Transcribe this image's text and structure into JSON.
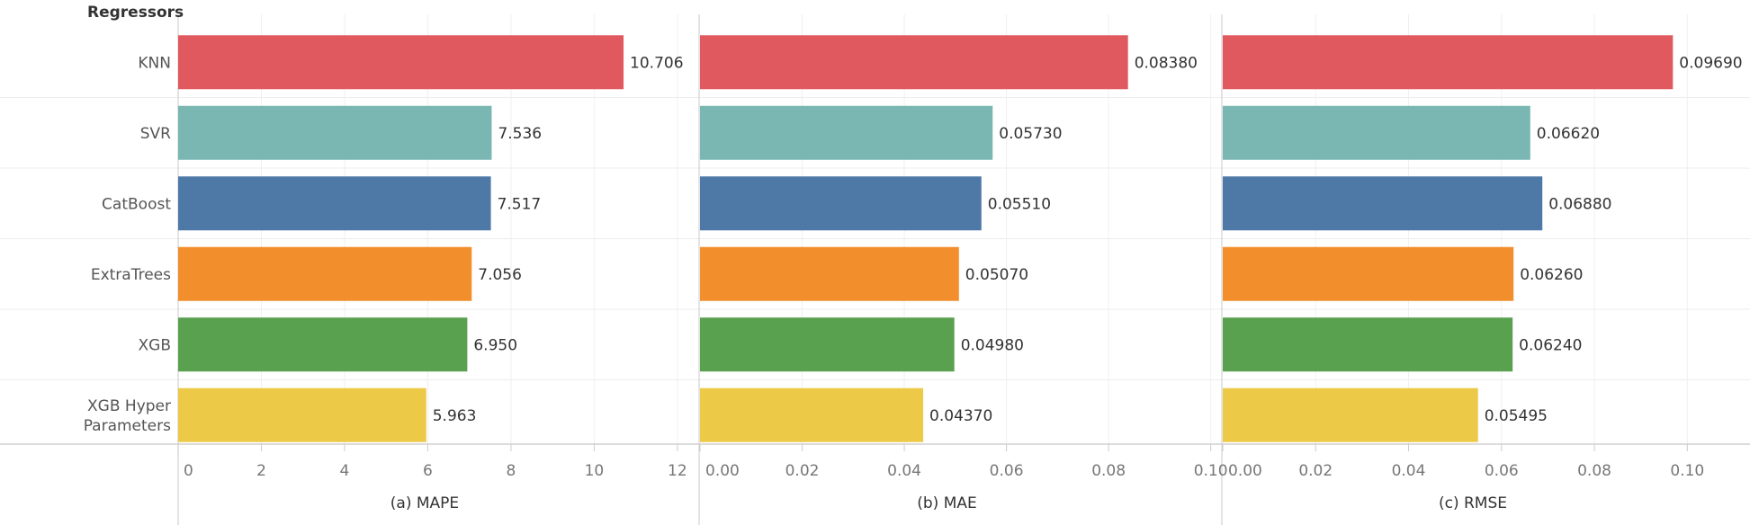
{
  "header_label": "Regressors",
  "colors": {
    "KNN": "#e0595e",
    "SVR": "#7ab7b2",
    "CatBoost": "#4e79a7",
    "ExtraTrees": "#f28e2b",
    "XGB": "#59a14f",
    "XGB Hyper Parameters": "#edc948"
  },
  "chart_data": {
    "type": "bar",
    "orientation": "horizontal",
    "categories": [
      "KNN",
      "SVR",
      "CatBoost",
      "ExtraTrees",
      "XGB",
      "XGB Hyper Parameters"
    ],
    "category_lines": [
      [
        "KNN"
      ],
      [
        "SVR"
      ],
      [
        "CatBoost"
      ],
      [
        "ExtraTrees"
      ],
      [
        "XGB"
      ],
      [
        "XGB Hyper",
        "Parameters"
      ]
    ],
    "panels": [
      {
        "title": "(a) MAPE",
        "values": [
          10.706,
          7.536,
          7.517,
          7.056,
          6.95,
          5.963
        ],
        "value_labels": [
          "10.706",
          "7.536",
          "7.517",
          "7.056",
          "6.950",
          "5.963"
        ],
        "xlim": [
          0,
          12.5
        ],
        "ticks": [
          0,
          2,
          4,
          6,
          8,
          10,
          12
        ],
        "tick_labels": [
          "0",
          "2",
          "4",
          "6",
          "8",
          "10",
          "12"
        ]
      },
      {
        "title": "(b) MAE",
        "values": [
          0.0838,
          0.0573,
          0.0551,
          0.0507,
          0.0498,
          0.0437
        ],
        "value_labels": [
          "0.08380",
          "0.05730",
          "0.05510",
          "0.05070",
          "0.04980",
          "0.04370"
        ],
        "xlim": [
          0,
          0.102
        ],
        "ticks": [
          0,
          0.02,
          0.04,
          0.06,
          0.08,
          0.1
        ],
        "tick_labels": [
          "0.00",
          "0.02",
          "0.04",
          "0.06",
          "0.08",
          "0.10"
        ]
      },
      {
        "title": "(c) RMSE",
        "values": [
          0.0969,
          0.0662,
          0.0688,
          0.0626,
          0.0624,
          0.05495
        ],
        "value_labels": [
          "0.09690",
          "0.06620",
          "0.06880",
          "0.06260",
          "0.06240",
          "0.05495"
        ],
        "xlim": [
          0,
          0.1135
        ],
        "ticks": [
          0,
          0.02,
          0.04,
          0.06,
          0.08,
          0.1
        ],
        "tick_labels": [
          "0.00",
          "0.02",
          "0.04",
          "0.06",
          "0.08",
          "0.10"
        ]
      }
    ],
    "grid": true,
    "legend": "none"
  }
}
